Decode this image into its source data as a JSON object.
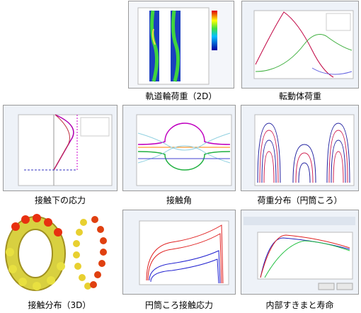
{
  "tiles": [
    {
      "caption": "軌道輪荷重（2D）"
    },
    {
      "caption": "転動体荷重"
    },
    {
      "caption": "接触下の応力"
    },
    {
      "caption": "接触角"
    },
    {
      "caption": "荷重分布（円筒ころ）"
    },
    {
      "caption": "接触分布（3D）"
    },
    {
      "caption": "円筒ころ接触応力"
    },
    {
      "caption": "内部すきまと寿命"
    }
  ]
}
